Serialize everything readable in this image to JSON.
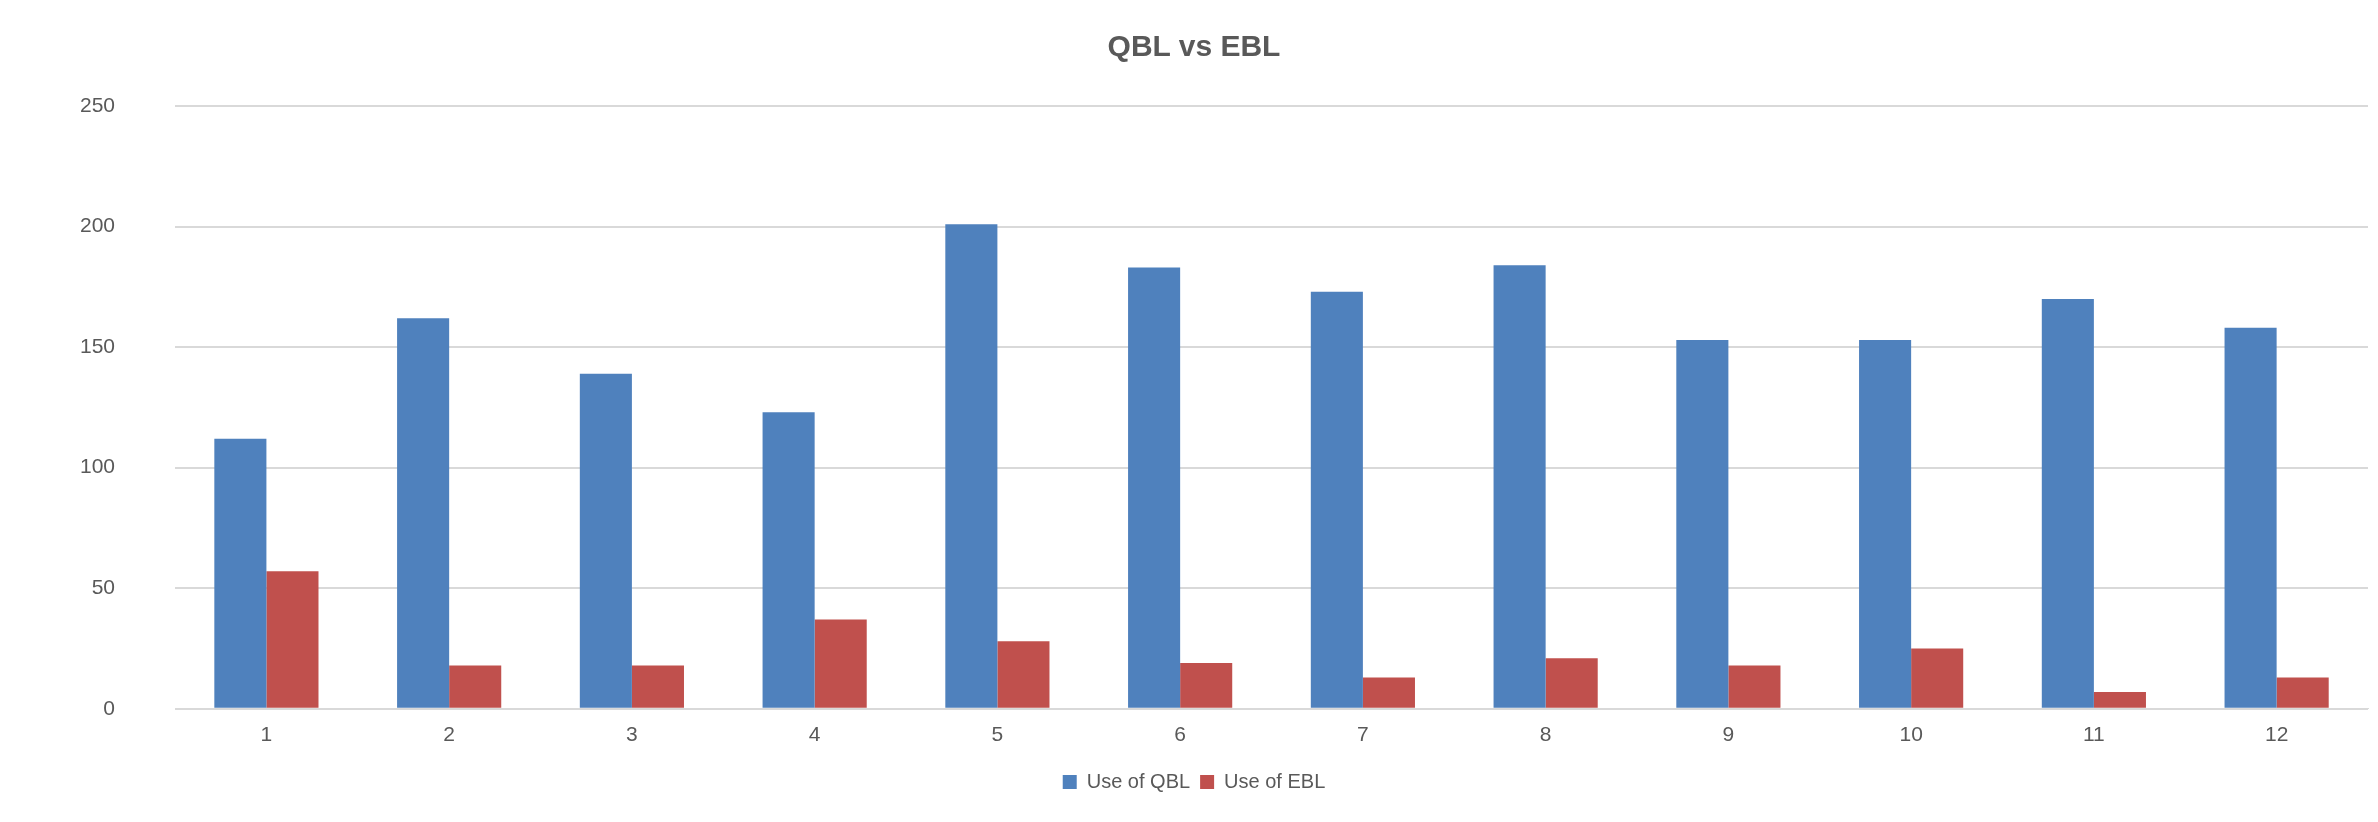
{
  "chart_data": {
    "type": "bar",
    "title": "QBL vs EBL",
    "categories": [
      "1",
      "2",
      "3",
      "4",
      "5",
      "6",
      "7",
      "8",
      "9",
      "10",
      "11",
      "12"
    ],
    "series": [
      {
        "name": "Use of QBL",
        "color": "#4f81bd",
        "values": [
          112,
          162,
          139,
          123,
          201,
          183,
          173,
          184,
          153,
          153,
          170,
          158
        ]
      },
      {
        "name": "Use of EBL",
        "color": "#c0504d",
        "values": [
          57,
          18,
          18,
          37,
          28,
          19,
          13,
          21,
          18,
          25,
          7,
          13
        ]
      }
    ],
    "ylim": [
      0,
      250
    ],
    "yticks": [
      0,
      50,
      100,
      150,
      200,
      250
    ],
    "grid": "y",
    "legend": "bottom"
  }
}
